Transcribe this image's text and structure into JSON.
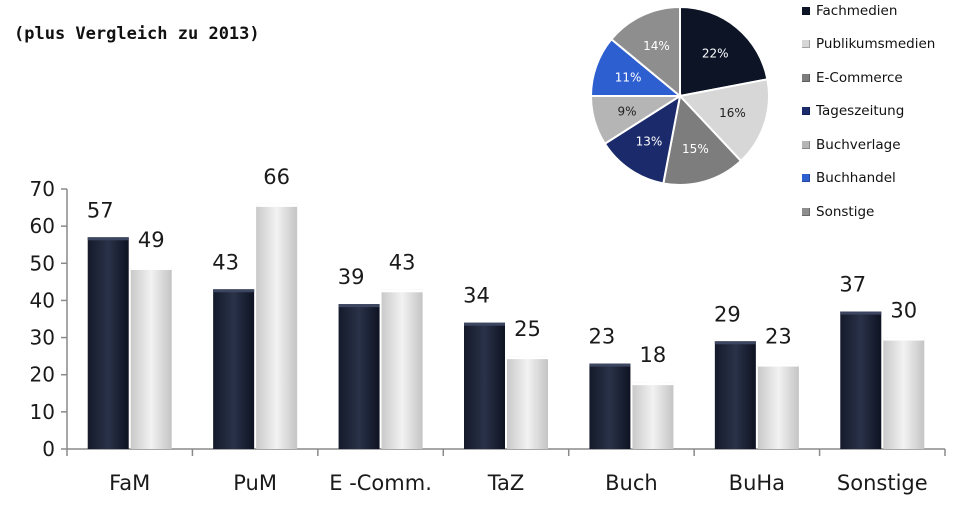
{
  "subtitle": "(plus Vergleich zu 2013)",
  "chart_data": [
    {
      "type": "bar",
      "categories": [
        "FaM",
        "PuM",
        "E -Comm.",
        "TaZ",
        "Buch",
        "BuHa",
        "Sonstige"
      ],
      "series": [
        {
          "values": [
            57,
            43,
            39,
            34,
            23,
            29,
            37
          ],
          "color": "#1b2133"
        },
        {
          "values": [
            49,
            66,
            43,
            25,
            18,
            23,
            30
          ],
          "color": "#d9d9d9"
        }
      ],
      "value_labels": [
        [
          "57",
          "43",
          "39",
          "34",
          "23",
          "29",
          "37"
        ],
        [
          "49",
          "66",
          "43",
          "25",
          "18",
          "23",
          "30"
        ]
      ],
      "ylim": [
        0,
        70
      ],
      "yticks": [
        "0",
        "10",
        "20",
        "30",
        "40",
        "50",
        "60",
        "70"
      ],
      "grid": false
    },
    {
      "type": "pie",
      "slices": [
        {
          "label": "Fachmedien",
          "value": 22,
          "text": "22%",
          "color": "#0d1426",
          "text_color": "#ffffff"
        },
        {
          "label": "Publikumsmedien",
          "value": 16,
          "text": "16%",
          "color": "#d7d7d7",
          "text_color": "#222222"
        },
        {
          "label": "E-Commerce",
          "value": 15,
          "text": "15%",
          "color": "#7d7d7d",
          "text_color": "#ffffff"
        },
        {
          "label": "Tageszeitung",
          "value": 13,
          "text": "13%",
          "color": "#1a2a6b",
          "text_color": "#ffffff"
        },
        {
          "label": "Buchverlage",
          "value": 9,
          "text": "9%",
          "color": "#b5b5b5",
          "text_color": "#222222"
        },
        {
          "label": "Buchhandel",
          "value": 11,
          "text": "11%",
          "color": "#2e5fd0",
          "text_color": "#ffffff"
        },
        {
          "label": "Sonstige",
          "value": 14,
          "text": "14%",
          "color": "#8e8e8e",
          "text_color": "#ffffff"
        }
      ],
      "legend_position": "right"
    }
  ]
}
